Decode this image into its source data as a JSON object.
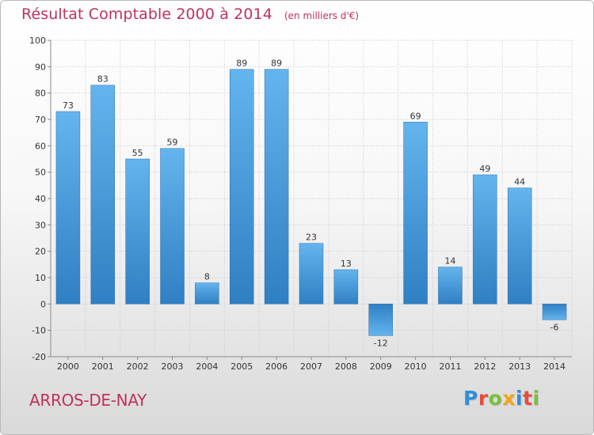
{
  "header": {
    "title": "Résultat Comptable 2000 à 2014",
    "unit": "(en milliers d'€)"
  },
  "footer": {
    "commune": "ARROS-DE-NAY",
    "logo_text": "Proxiti",
    "logo_colors": [
      "#2f8fd8",
      "#e94b3c",
      "#7bbf3b",
      "#f2a51c",
      "#2f8fd8",
      "#e94b3c",
      "#7bbf3b"
    ]
  },
  "colors": {
    "accent": "#c0315a",
    "bar_light": "#62b1ec",
    "bar_dark": "#2e7fc3",
    "grid": "#c8c8c8"
  },
  "chart_data": {
    "type": "bar",
    "title": "Résultat Comptable 2000 à 2014",
    "subtitle": "(en milliers d'€)",
    "xlabel": "",
    "ylabel": "",
    "categories": [
      "2000",
      "2001",
      "2002",
      "2003",
      "2004",
      "2005",
      "2006",
      "2007",
      "2008",
      "2009",
      "2010",
      "2011",
      "2012",
      "2013",
      "2014"
    ],
    "values": [
      73,
      83,
      55,
      59,
      8,
      89,
      89,
      23,
      13,
      -12,
      69,
      14,
      49,
      44,
      -6
    ],
    "ylim": [
      -20,
      100
    ],
    "yticks": [
      -20,
      -10,
      0,
      10,
      20,
      30,
      40,
      50,
      60,
      70,
      80,
      90,
      100
    ],
    "grid": true,
    "legend": "none"
  }
}
